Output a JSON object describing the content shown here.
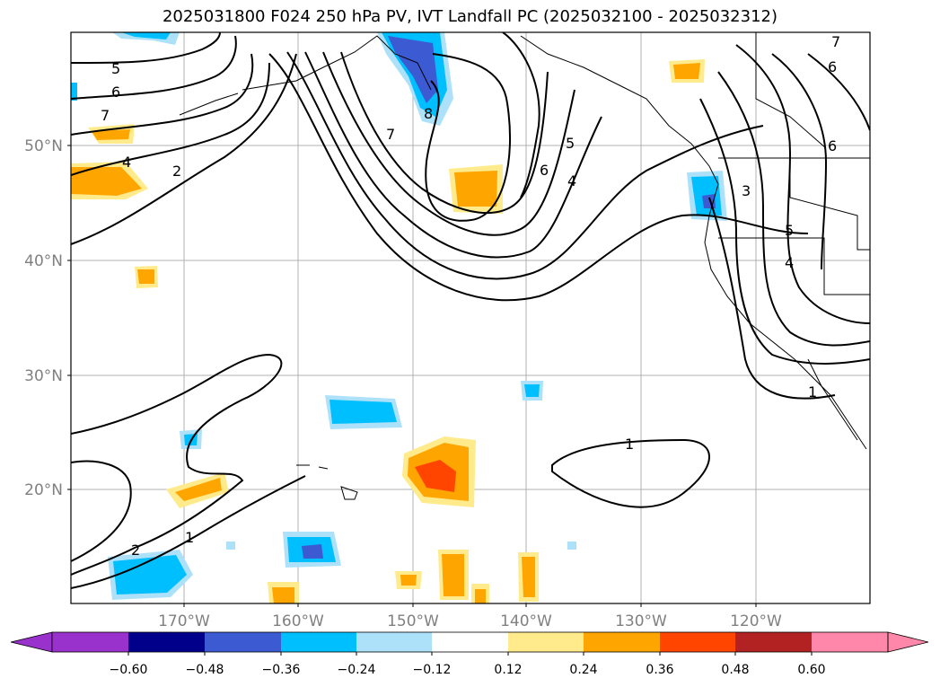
{
  "title": "2025031800 F024 250 hPa PV, IVT Landfall PC (2025032100 - 2025032312)",
  "map": {
    "lat_ticks": [
      "50°N",
      "40°N",
      "30°N",
      "20°N"
    ],
    "lon_ticks": [
      "170°W",
      "160°W",
      "150°W",
      "140°W",
      "130°W",
      "120°W"
    ],
    "gridlines": true
  },
  "colorbar": {
    "orientation": "horizontal",
    "extend": "both",
    "colors": [
      "#9932CC",
      "#00008B",
      "#3C5AD2",
      "#00BFFF",
      "#ADE1FA",
      "#FFFFFF",
      "#FFEB8C",
      "#FFA500",
      "#FF4500",
      "#B22222",
      "#FF88AA"
    ],
    "tick_labels": [
      "−0.60",
      "−0.48",
      "−0.36",
      "−0.24",
      "−0.12",
      "0.12",
      "0.24",
      "0.36",
      "0.48",
      "0.60"
    ]
  },
  "contour_labels": [
    "5",
    "6",
    "7",
    "4",
    "2",
    "8",
    "7",
    "5",
    "6",
    "4",
    "7",
    "6",
    "6",
    "3",
    "5",
    "4",
    "1",
    "1",
    "1",
    "2"
  ]
}
